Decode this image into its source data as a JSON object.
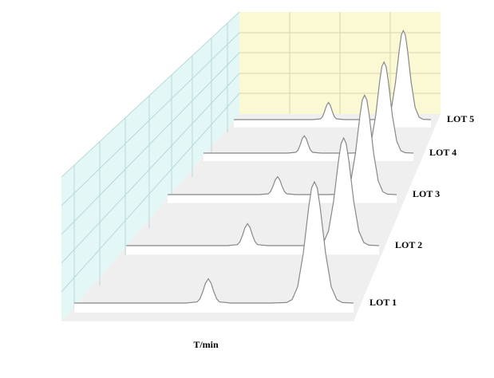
{
  "chart_data": {
    "type": "waterfall",
    "x_label": "T/min",
    "x": [
      0,
      20,
      40,
      44,
      45,
      46,
      47,
      48,
      49,
      50,
      51,
      52,
      56,
      70,
      76,
      78,
      80,
      82,
      84,
      85,
      86,
      87,
      88,
      90,
      92,
      94,
      96,
      100
    ],
    "xlim": [
      0,
      100
    ],
    "ylim": [
      0,
      100
    ],
    "color": "#888888",
    "series": [
      {
        "name": "LOT 1",
        "values": [
          0,
          0,
          0,
          0.9,
          3.4,
          9.2,
          16.4,
          20,
          16.4,
          9.2,
          3.4,
          0.9,
          0,
          0,
          0.4,
          2.8,
          13.5,
          41,
          80,
          95,
          100,
          95,
          80,
          41,
          13.5,
          2.8,
          0.4,
          0
        ]
      },
      {
        "name": "LOT 2",
        "values": [
          0,
          0,
          0,
          0.9,
          3.4,
          9.2,
          16.4,
          20,
          16.4,
          9.2,
          3.4,
          0.9,
          0,
          0,
          0.4,
          2.7,
          13.2,
          40,
          78,
          93,
          98,
          93,
          78,
          40,
          13.2,
          2.7,
          0.4,
          0
        ]
      },
      {
        "name": "LOT 3",
        "values": [
          0,
          0,
          0,
          0.8,
          3.1,
          8.3,
          14.8,
          18,
          14.8,
          8.3,
          3.1,
          0.8,
          0,
          0,
          0.4,
          2.8,
          13.5,
          41,
          80,
          95,
          100,
          95,
          80,
          41,
          13.5,
          2.8,
          0.4,
          0
        ]
      },
      {
        "name": "LOT 4",
        "values": [
          0,
          0,
          0,
          0.9,
          3.2,
          8.7,
          15.6,
          19,
          15.6,
          8.7,
          3.2,
          0.9,
          0,
          0,
          0.4,
          2.8,
          13.5,
          41,
          80,
          95,
          100,
          95,
          80,
          41,
          13.5,
          2.8,
          0.4,
          0
        ]
      },
      {
        "name": "LOT 5",
        "values": [
          0,
          0,
          0,
          0.9,
          3.4,
          9.2,
          16.4,
          20,
          16.4,
          9.2,
          3.4,
          0.9,
          0,
          0,
          0.4,
          2.9,
          14,
          43,
          83,
          99,
          104,
          99,
          83,
          43,
          14,
          2.9,
          0.4,
          0
        ]
      }
    ]
  }
}
